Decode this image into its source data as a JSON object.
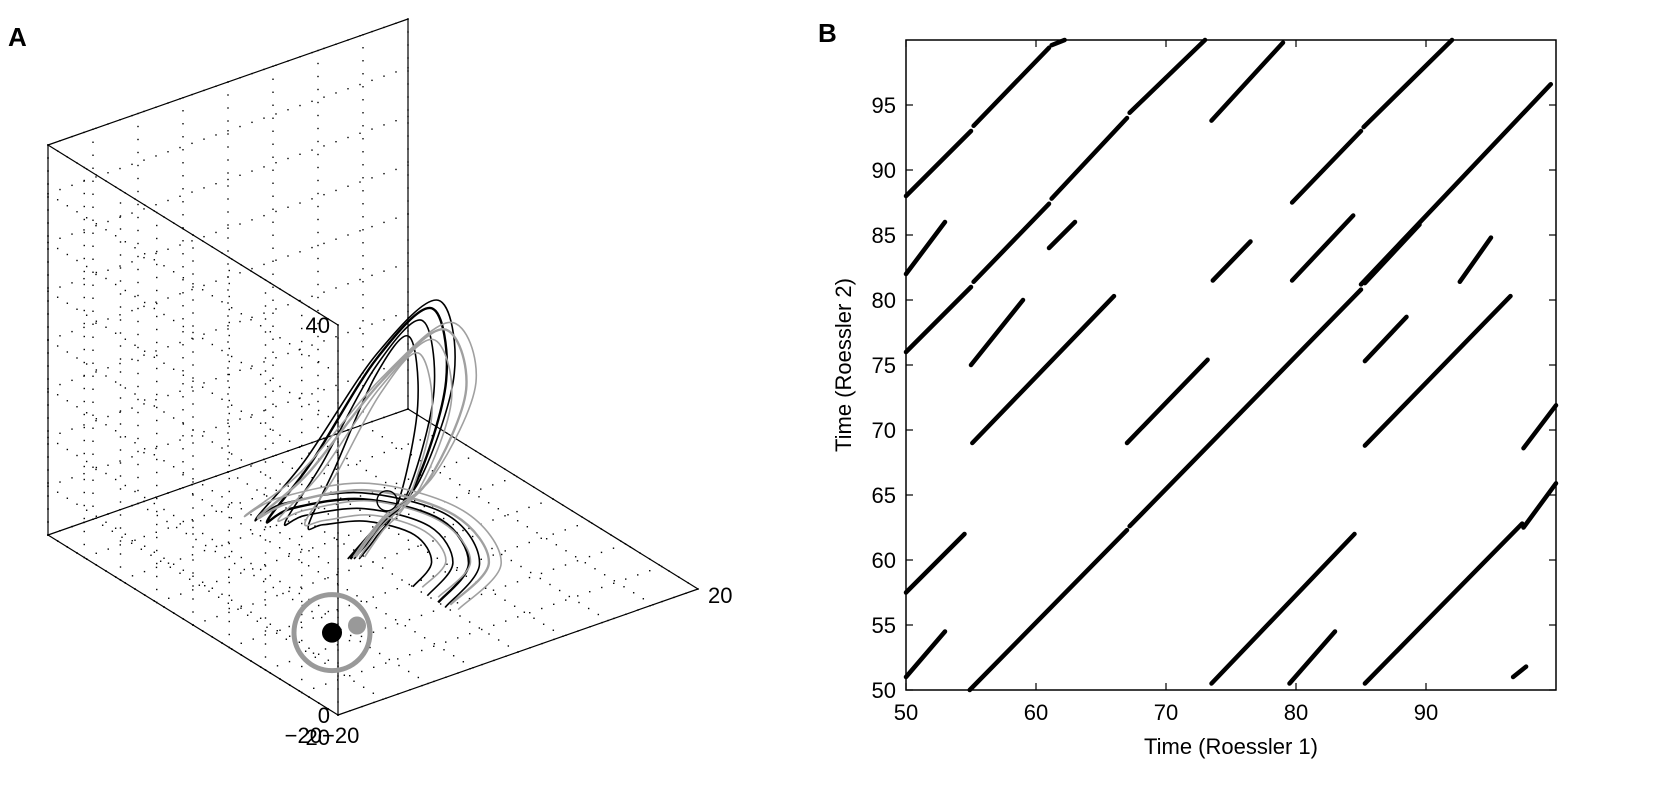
{
  "colors": {
    "ink": "#000000",
    "trajectory2": "#a0a0a0",
    "marker_ring": "#999999",
    "background": "#ffffff"
  },
  "chart_data": [
    {
      "panel": "A",
      "type": "line",
      "projection": "3d",
      "xlabel": "",
      "ylabel": "",
      "zlabel": "",
      "xlim": [
        -20,
        20
      ],
      "ylim": [
        -20,
        20
      ],
      "zlim": [
        0,
        40
      ],
      "tick_labels": {
        "x": [
          "−20",
          "20"
        ],
        "y": [
          "−20",
          "20"
        ],
        "z": [
          "0",
          "40"
        ]
      },
      "grid": "dotted",
      "series": [
        {
          "color": "#000000",
          "x": [
            0,
            7,
            10,
            6,
            -2,
            -9,
            -10,
            -6,
            0,
            5,
            6,
            3,
            -2
          ],
          "y": [
            -10,
            -6,
            2,
            9,
            10,
            5,
            -3,
            -8,
            -9,
            -5,
            1,
            3,
            1
          ],
          "z": [
            0,
            0.3,
            0.6,
            1,
            2,
            5,
            15,
            27,
            31,
            20,
            6,
            1.5,
            0.5
          ]
        },
        {
          "color": "#a0a0a0",
          "x": [
            0,
            8,
            11,
            7,
            -2,
            -10,
            -11,
            -7,
            0,
            6,
            7,
            4,
            -2
          ],
          "y": [
            -11,
            -7,
            2,
            10,
            11,
            6,
            -3,
            -9,
            -10,
            -6,
            1,
            4,
            1
          ],
          "z": [
            0,
            0.3,
            0.6,
            1,
            2,
            5,
            14,
            25,
            29,
            19,
            6,
            1.5,
            0.5
          ]
        }
      ],
      "markers": [
        {
          "label": "black filled point",
          "x": -11,
          "y": -8,
          "z": 0
        },
        {
          "label": "gray filled point",
          "x": -10,
          "y": -8,
          "z": 0
        },
        {
          "label": "open circle",
          "x": 8,
          "y": 8,
          "z": 0
        }
      ]
    },
    {
      "panel": "B",
      "type": "scatter",
      "variant": "recurrence_plot",
      "xlabel": "Time (Roessler 1)",
      "ylabel": "Time (Roessler 2)",
      "xlim": [
        50,
        100
      ],
      "ylim": [
        50,
        100
      ],
      "xticks": [
        50,
        60,
        70,
        80,
        90
      ],
      "yticks": [
        50,
        55,
        60,
        65,
        70,
        75,
        80,
        85,
        90,
        95
      ],
      "line_segments": [
        [
          50,
          88,
          55,
          93
        ],
        [
          55.2,
          93.4,
          61,
          99.4
        ],
        [
          61.2,
          99.6,
          62.2,
          100
        ],
        [
          50,
          82,
          53,
          86
        ],
        [
          50,
          76,
          55,
          81
        ],
        [
          55.2,
          81.4,
          61,
          87.4
        ],
        [
          61.2,
          87.8,
          67,
          94
        ],
        [
          67.2,
          94.4,
          73,
          100
        ],
        [
          61,
          84,
          63,
          86
        ],
        [
          55,
          75,
          59,
          80
        ],
        [
          55.1,
          69,
          66,
          80.3
        ],
        [
          50,
          57.5,
          54.5,
          62
        ],
        [
          50,
          51,
          53,
          54.5
        ],
        [
          54.9,
          50,
          67,
          62.3
        ],
        [
          67.2,
          62.6,
          85,
          80.8
        ],
        [
          85,
          81.2,
          99.6,
          96.6
        ],
        [
          67,
          69,
          73.2,
          75.4
        ],
        [
          73.5,
          50.5,
          84.5,
          62
        ],
        [
          79.5,
          50.5,
          83,
          54.5
        ],
        [
          73.6,
          81.5,
          76.5,
          84.5
        ],
        [
          79.7,
          81.5,
          84.4,
          86.5
        ],
        [
          73.5,
          93.8,
          79,
          99.8
        ],
        [
          79.7,
          87.5,
          85,
          93
        ],
        [
          85.2,
          93.3,
          92,
          100
        ],
        [
          85.3,
          75.3,
          88.5,
          78.7
        ],
        [
          85.3,
          68.8,
          96.5,
          80.3
        ],
        [
          85.3,
          50.5,
          97.4,
          62.8
        ],
        [
          85.3,
          81.3,
          89.5,
          85.8
        ],
        [
          92.6,
          81.4,
          95,
          84.8
        ],
        [
          97.5,
          68.6,
          100,
          71.9
        ],
        [
          97.5,
          62.5,
          100,
          65.9
        ],
        [
          96.7,
          51,
          97.7,
          51.8
        ]
      ]
    }
  ],
  "panel_labels": {
    "a": "A",
    "b": "B"
  }
}
